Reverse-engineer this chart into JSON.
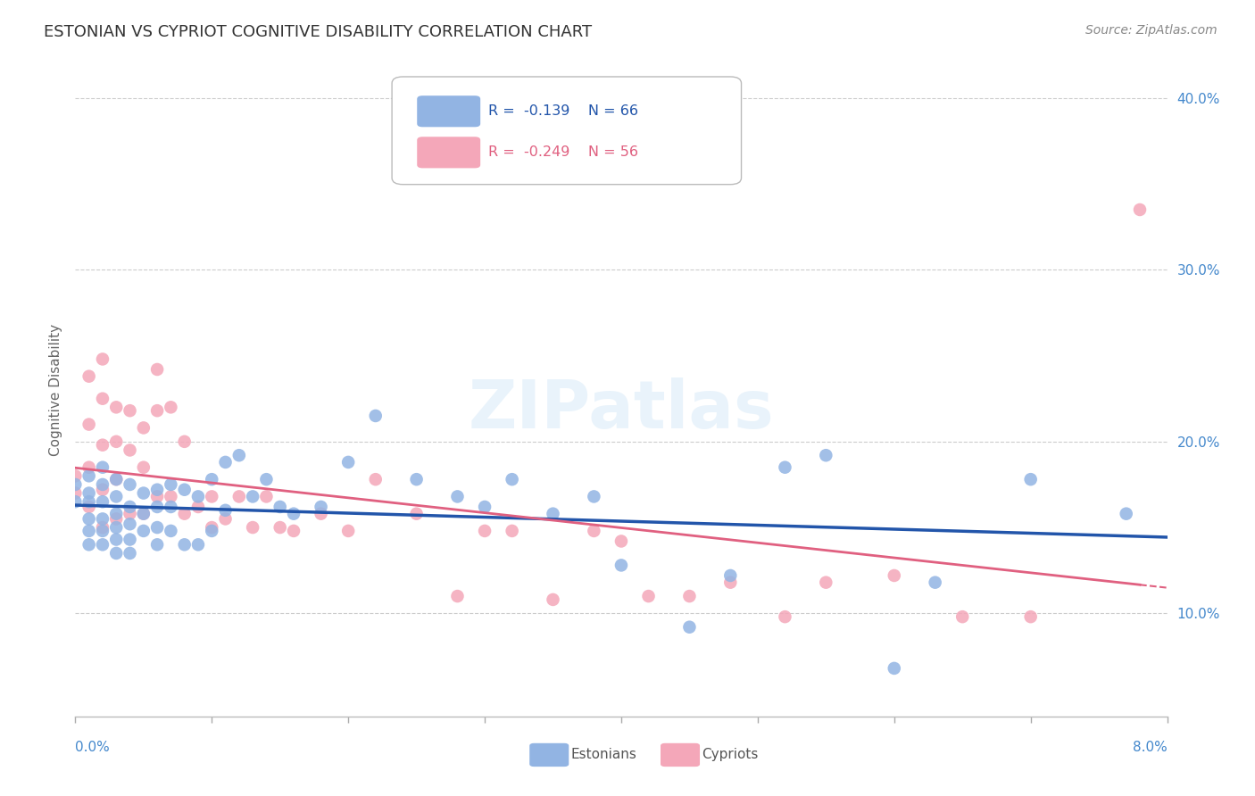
{
  "title": "ESTONIAN VS CYPRIOT COGNITIVE DISABILITY CORRELATION CHART",
  "source": "Source: ZipAtlas.com",
  "ylabel": "Cognitive Disability",
  "r_estonian": -0.139,
  "n_estonian": 66,
  "r_cypriot": -0.249,
  "n_cypriot": 56,
  "estonian_color": "#92b4e3",
  "cypriot_color": "#f4a7b9",
  "estonian_line_color": "#2255aa",
  "cypriot_line_color": "#e06080",
  "background_color": "#ffffff",
  "grid_color": "#cccccc",
  "ytick_color": "#4488cc",
  "xtick_color": "#4488cc",
  "xlim": [
    0.0,
    0.08
  ],
  "ylim": [
    0.04,
    0.42
  ],
  "yticks": [
    0.1,
    0.2,
    0.3,
    0.4
  ],
  "ytick_labels": [
    "10.0%",
    "20.0%",
    "30.0%",
    "40.0%"
  ],
  "estonian_x": [
    0.0,
    0.0,
    0.001,
    0.001,
    0.001,
    0.001,
    0.001,
    0.001,
    0.002,
    0.002,
    0.002,
    0.002,
    0.002,
    0.002,
    0.003,
    0.003,
    0.003,
    0.003,
    0.003,
    0.003,
    0.004,
    0.004,
    0.004,
    0.004,
    0.004,
    0.005,
    0.005,
    0.005,
    0.006,
    0.006,
    0.006,
    0.006,
    0.007,
    0.007,
    0.007,
    0.008,
    0.008,
    0.009,
    0.009,
    0.01,
    0.01,
    0.011,
    0.011,
    0.012,
    0.013,
    0.014,
    0.015,
    0.016,
    0.018,
    0.02,
    0.022,
    0.025,
    0.028,
    0.03,
    0.032,
    0.035,
    0.038,
    0.04,
    0.045,
    0.048,
    0.052,
    0.055,
    0.06,
    0.063,
    0.07,
    0.077
  ],
  "estonian_y": [
    0.175,
    0.165,
    0.18,
    0.17,
    0.165,
    0.155,
    0.148,
    0.14,
    0.185,
    0.175,
    0.165,
    0.155,
    0.148,
    0.14,
    0.178,
    0.168,
    0.158,
    0.15,
    0.143,
    0.135,
    0.175,
    0.162,
    0.152,
    0.143,
    0.135,
    0.17,
    0.158,
    0.148,
    0.172,
    0.162,
    0.15,
    0.14,
    0.175,
    0.162,
    0.148,
    0.172,
    0.14,
    0.168,
    0.14,
    0.178,
    0.148,
    0.188,
    0.16,
    0.192,
    0.168,
    0.178,
    0.162,
    0.158,
    0.162,
    0.188,
    0.215,
    0.178,
    0.168,
    0.162,
    0.178,
    0.158,
    0.168,
    0.128,
    0.092,
    0.122,
    0.185,
    0.192,
    0.068,
    0.118,
    0.178,
    0.158
  ],
  "cypriot_x": [
    0.0,
    0.0,
    0.001,
    0.001,
    0.001,
    0.001,
    0.002,
    0.002,
    0.002,
    0.002,
    0.002,
    0.003,
    0.003,
    0.003,
    0.003,
    0.004,
    0.004,
    0.004,
    0.005,
    0.005,
    0.005,
    0.006,
    0.006,
    0.006,
    0.007,
    0.007,
    0.008,
    0.008,
    0.009,
    0.01,
    0.01,
    0.011,
    0.012,
    0.013,
    0.014,
    0.015,
    0.016,
    0.018,
    0.02,
    0.022,
    0.025,
    0.028,
    0.03,
    0.032,
    0.035,
    0.038,
    0.04,
    0.042,
    0.045,
    0.048,
    0.052,
    0.055,
    0.06,
    0.065,
    0.07,
    0.078
  ],
  "cypriot_y": [
    0.18,
    0.17,
    0.238,
    0.21,
    0.185,
    0.162,
    0.248,
    0.225,
    0.198,
    0.172,
    0.15,
    0.22,
    0.2,
    0.178,
    0.155,
    0.218,
    0.195,
    0.158,
    0.208,
    0.185,
    0.158,
    0.242,
    0.218,
    0.168,
    0.22,
    0.168,
    0.2,
    0.158,
    0.162,
    0.168,
    0.15,
    0.155,
    0.168,
    0.15,
    0.168,
    0.15,
    0.148,
    0.158,
    0.148,
    0.178,
    0.158,
    0.11,
    0.148,
    0.148,
    0.108,
    0.148,
    0.142,
    0.11,
    0.11,
    0.118,
    0.098,
    0.118,
    0.122,
    0.098,
    0.098,
    0.335
  ]
}
